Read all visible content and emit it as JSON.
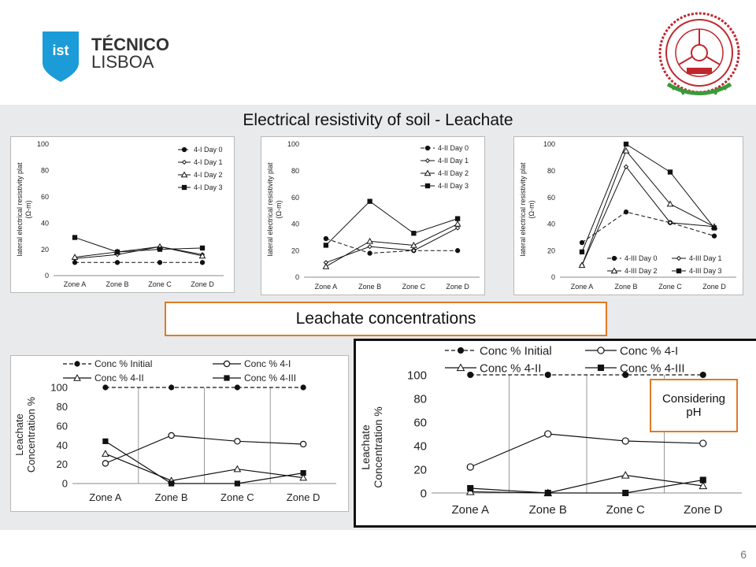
{
  "header": {
    "logo_line1": "TÉCNICO",
    "logo_line2": "LISBOA",
    "logo_mark": "ist"
  },
  "slide_title": "Electrical resistivity of soil - Leachate",
  "section_label": "Leachate concentrations",
  "callout": {
    "line1": "Considering",
    "line2": "pH"
  },
  "page_number": "6",
  "colors": {
    "accent_orange": "#e07a24",
    "ist_blue": "#1b9bd7",
    "seal_red": "#c0272d",
    "seal_green": "#3a9a3a"
  },
  "chart_data": [
    {
      "type": "line",
      "ylabel": "lateral electrical resistivity plat (Ω-m)",
      "categories": [
        "Zone A",
        "Zone B",
        "Zone C",
        "Zone D"
      ],
      "ylim": [
        0,
        100
      ],
      "yticks": [
        0,
        20,
        40,
        60,
        80,
        100
      ],
      "legend_position": "top-right",
      "series": [
        {
          "name": "4-I Day 0",
          "values": [
            10,
            10,
            10,
            10
          ]
        },
        {
          "name": "4-I Day 1",
          "values": [
            13,
            16,
            22,
            16
          ]
        },
        {
          "name": "4-I Day 2",
          "values": [
            14,
            18,
            22,
            15
          ]
        },
        {
          "name": "4-I Day 3",
          "values": [
            29,
            18,
            20,
            21
          ]
        }
      ]
    },
    {
      "type": "line",
      "ylabel": "lateral electrical resistivity plat (Ω-m)",
      "categories": [
        "Zone A",
        "Zone B",
        "Zone C",
        "Zone D"
      ],
      "ylim": [
        0,
        100
      ],
      "yticks": [
        0,
        20,
        40,
        60,
        80,
        100
      ],
      "legend_position": "top-right",
      "series": [
        {
          "name": "4-II Day 0",
          "values": [
            29,
            18,
            20,
            20
          ]
        },
        {
          "name": "4-II Day 1",
          "values": [
            11,
            23,
            20,
            37
          ]
        },
        {
          "name": "4-II Day 2",
          "values": [
            8,
            27,
            24,
            40
          ]
        },
        {
          "name": "4-II Day 3",
          "values": [
            24,
            57,
            33,
            44
          ]
        }
      ]
    },
    {
      "type": "line",
      "ylabel": "lateral electrical resistivity plat (Ω-m)",
      "categories": [
        "Zone A",
        "Zone B",
        "Zone C",
        "Zone D"
      ],
      "ylim": [
        0,
        100
      ],
      "yticks": [
        0,
        20,
        40,
        60,
        80,
        100
      ],
      "legend_position": "bottom-right",
      "series": [
        {
          "name": "4-III Day 0",
          "values": [
            26,
            49,
            41,
            31
          ]
        },
        {
          "name": "4-III Day 1",
          "values": [
            9,
            83,
            41,
            38
          ]
        },
        {
          "name": "4-III Day 2",
          "values": [
            9,
            95,
            55,
            38
          ]
        },
        {
          "name": "4-III Day 3",
          "values": [
            19,
            100,
            79,
            37
          ]
        }
      ]
    },
    {
      "type": "line",
      "ylabel": "Leachate Concentration %",
      "categories": [
        "Zone A",
        "Zone B",
        "Zone C",
        "Zone D"
      ],
      "ylim": [
        0,
        100
      ],
      "yticks": [
        0,
        20,
        40,
        60,
        80,
        100
      ],
      "legend_position": "top",
      "series": [
        {
          "name": "Conc % Initial",
          "values": [
            100,
            100,
            100,
            100
          ]
        },
        {
          "name": "Conc % 4-I",
          "values": [
            21,
            50,
            44,
            41
          ]
        },
        {
          "name": "Conc % 4-II",
          "values": [
            31,
            3,
            15,
            6
          ]
        },
        {
          "name": "Conc % 4-III",
          "values": [
            44,
            0,
            0,
            11
          ]
        }
      ]
    },
    {
      "type": "line",
      "ylabel": "Leachate Concentration %",
      "categories": [
        "Zone A",
        "Zone B",
        "Zone C",
        "Zone D"
      ],
      "ylim": [
        0,
        100
      ],
      "yticks": [
        0,
        20,
        40,
        60,
        80,
        100
      ],
      "legend_position": "top",
      "series": [
        {
          "name": "Conc % Initial",
          "values": [
            100,
            100,
            100,
            100
          ]
        },
        {
          "name": "Conc % 4-I",
          "values": [
            22,
            50,
            44,
            42
          ]
        },
        {
          "name": "Conc % 4-II",
          "values": [
            1,
            0,
            15,
            6
          ]
        },
        {
          "name": "Conc % 4-III",
          "values": [
            4,
            0,
            0,
            11
          ]
        }
      ]
    }
  ]
}
